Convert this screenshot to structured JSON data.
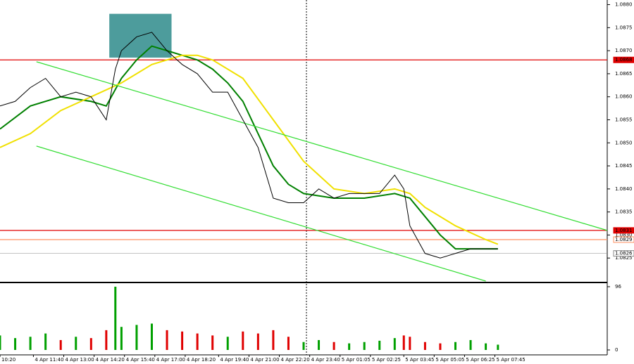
{
  "chart_data": {
    "type": "line",
    "x": [
      0,
      5,
      10,
      15,
      20,
      25,
      30,
      35,
      38,
      40,
      45,
      50,
      55,
      60,
      65,
      70,
      75,
      80,
      85,
      90,
      95,
      100,
      105,
      110,
      115,
      120,
      125,
      130,
      133,
      135,
      140,
      145,
      150,
      155,
      160,
      164
    ],
    "values": [
      1.0858,
      1.0859,
      1.0862,
      1.0864,
      1.086,
      1.0861,
      1.086,
      1.0855,
      1.0866,
      1.087,
      1.0873,
      1.0874,
      1.087,
      1.0867,
      1.0865,
      1.0861,
      1.0861,
      1.0855,
      1.0849,
      1.0838,
      1.0837,
      1.0837,
      1.084,
      1.0838,
      1.0839,
      1.0839,
      1.0839,
      1.0843,
      1.084,
      1.0832,
      1.0826,
      1.0825,
      1.0826,
      1.0827,
      1.0827,
      1.0827
    ],
    "color": "#000000",
    "volume": [
      22,
      18,
      20,
      25,
      15,
      20,
      18,
      30,
      96,
      35,
      38,
      40,
      30,
      28,
      25,
      22,
      20,
      28,
      25,
      30,
      20,
      12,
      15,
      12,
      10,
      12,
      14,
      18,
      22,
      20,
      12,
      10,
      12,
      15,
      10,
      8
    ],
    "up_color": "#00a000",
    "down_color": "#e00000",
    "overlays": [
      {
        "color": "#008000",
        "x": [
          0,
          10,
          20,
          30,
          35,
          40,
          45,
          50,
          55,
          60,
          65,
          70,
          75,
          80,
          85,
          90,
          95,
          100,
          110,
          120,
          130,
          135,
          140,
          145,
          150,
          160,
          164
        ],
        "values": [
          1.0853,
          1.0858,
          1.086,
          1.0859,
          1.0858,
          1.0864,
          1.0868,
          1.0871,
          1.087,
          1.0869,
          1.0868,
          1.0866,
          1.0863,
          1.0859,
          1.0852,
          1.0845,
          1.0841,
          1.0839,
          1.0838,
          1.0838,
          1.0839,
          1.0838,
          1.0834,
          1.083,
          1.0827,
          1.0827,
          1.0827
        ]
      },
      {
        "color": "#f0e000",
        "x": [
          0,
          10,
          20,
          30,
          40,
          50,
          60,
          65,
          70,
          80,
          90,
          100,
          110,
          120,
          130,
          135,
          140,
          150,
          160,
          164
        ],
        "values": [
          1.0849,
          1.0852,
          1.0857,
          1.086,
          1.0863,
          1.0867,
          1.0869,
          1.0869,
          1.0868,
          1.0864,
          1.0855,
          1.0846,
          1.084,
          1.0839,
          1.084,
          1.0839,
          1.0836,
          1.0832,
          1.0829,
          1.0828
        ]
      },
      {
        "color": "#33dd33",
        "x": [
          12,
          200
        ],
        "values": [
          1.08676,
          1.0831
        ]
      },
      {
        "color": "#33dd33",
        "x": [
          12,
          160
        ],
        "values": [
          1.08493,
          1.082
        ]
      }
    ],
    "range_box": {
      "x": [
        36,
        56.5
      ],
      "values": [
        1.08685,
        1.0878
      ],
      "color": "#2e8b8b"
    },
    "levels": [
      {
        "value": 1.0868,
        "label": "1.0868",
        "color": "#e00000"
      },
      {
        "value": 1.0831,
        "label": "1.0831",
        "color": "#e00000"
      },
      {
        "value": 1.0829,
        "label": "1.0829",
        "color": "#ff9060"
      },
      {
        "value": 1.0826,
        "label": "1.0826",
        "color": "#888888"
      }
    ],
    "xlim": [
      0,
      200
    ],
    "xticks": [
      {
        "value": 0,
        "label": "10:20"
      },
      {
        "value": 11,
        "label": "4 Apr 11:40"
      },
      {
        "value": 21,
        "label": "4 Apr 13:00"
      },
      {
        "value": 31,
        "label": "4 Apr 14:20"
      },
      {
        "value": 41,
        "label": "4 Apr 15:40"
      },
      {
        "value": 51,
        "label": "4 Apr 17:00"
      },
      {
        "value": 61,
        "label": "4 Apr 18:20"
      },
      {
        "value": 72,
        "label": "4 Apr 19:40"
      },
      {
        "value": 82,
        "label": "4 Apr 21:00"
      },
      {
        "value": 92,
        "label": "4 Apr 22:20"
      },
      {
        "value": 102,
        "label": "4 Apr 23:40"
      },
      {
        "value": 112,
        "label": "5 Apr 01:05"
      },
      {
        "value": 122,
        "label": "5 Apr 02:25"
      },
      {
        "value": 133,
        "label": "5 Apr 03:45"
      },
      {
        "value": 143,
        "label": "5 Apr 05:05"
      },
      {
        "value": 153,
        "label": "5 Apr 06:25"
      },
      {
        "value": 163,
        "label": "5 Apr 07:45"
      }
    ],
    "ylim": [
      1.082,
      1.0881
    ],
    "yticks": [
      {
        "value": 1.088,
        "label": "1.0880"
      },
      {
        "value": 1.0875,
        "label": "1.0875"
      },
      {
        "value": 1.087,
        "label": "1.0870"
      },
      {
        "value": 1.0865,
        "label": "1.0865"
      },
      {
        "value": 1.086,
        "label": "1.0860"
      },
      {
        "value": 1.0855,
        "label": "1.0855"
      },
      {
        "value": 1.085,
        "label": "1.0850"
      },
      {
        "value": 1.0845,
        "label": "1.0845"
      },
      {
        "value": 1.084,
        "label": "1.0840"
      },
      {
        "value": 1.0835,
        "label": "1.0835"
      },
      {
        "value": 1.083,
        "label": "1.0830"
      },
      {
        "value": 1.0825,
        "label": "1.0825"
      }
    ],
    "vlim": [
      0,
      96
    ],
    "vticks": [
      0,
      96
    ]
  }
}
